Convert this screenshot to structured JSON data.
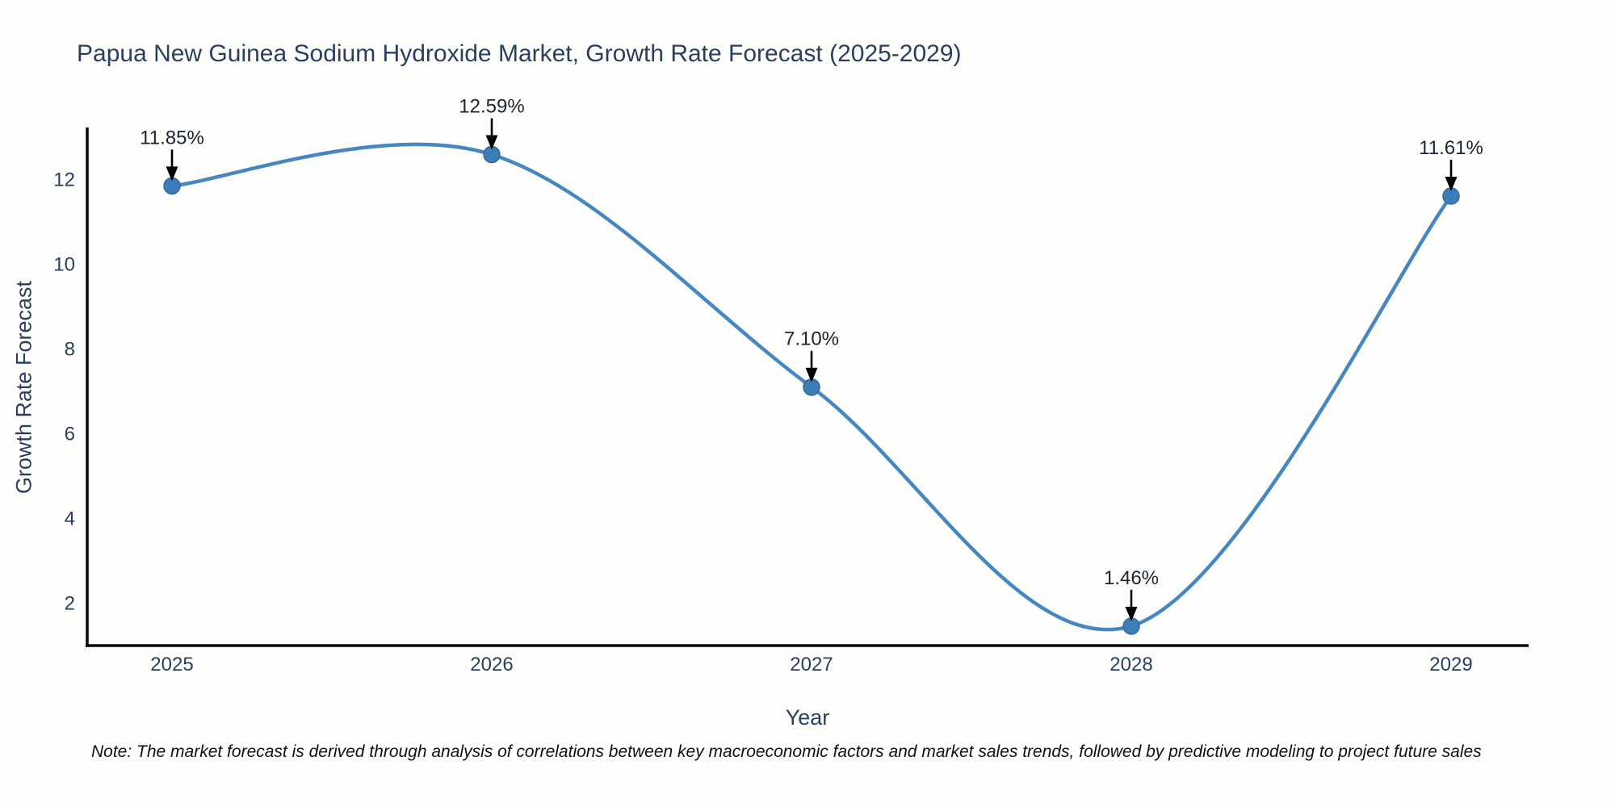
{
  "title": "Papua New Guinea Sodium Hydroxide Market, Growth Rate Forecast (2025-2029)",
  "note": "Note: The market forecast is derived through analysis of correlations between key macroeconomic factors and market sales trends, followed by predictive modeling to project future sales",
  "chart_data": {
    "type": "line",
    "line_shape": "spline",
    "title": "Papua New Guinea Sodium Hydroxide Market, Growth Rate Forecast (2025-2029)",
    "xlabel": "Year",
    "ylabel": "Growth Rate Forecast",
    "categories": [
      "2025",
      "2026",
      "2027",
      "2028",
      "2029"
    ],
    "values": [
      11.85,
      12.59,
      7.1,
      1.46,
      11.61
    ],
    "point_labels": [
      "11.85%",
      "12.59%",
      "7.10%",
      "1.46%",
      "11.61%"
    ],
    "yticks": [
      2,
      4,
      6,
      8,
      10,
      12
    ],
    "ylim": [
      1.0,
      13.19
    ],
    "grid": false,
    "legend": "none",
    "markers": true,
    "annotation_arrows": true,
    "colors": {
      "line": "#4787c1",
      "marker": "#3d7db8",
      "marker_edge": "#35699c",
      "axis_line": "#0a0a0a",
      "tick_text": "#2a3f5f",
      "annotation_text": "#1b2430",
      "arrow": "#000000",
      "background": "#fdfdfc"
    }
  }
}
